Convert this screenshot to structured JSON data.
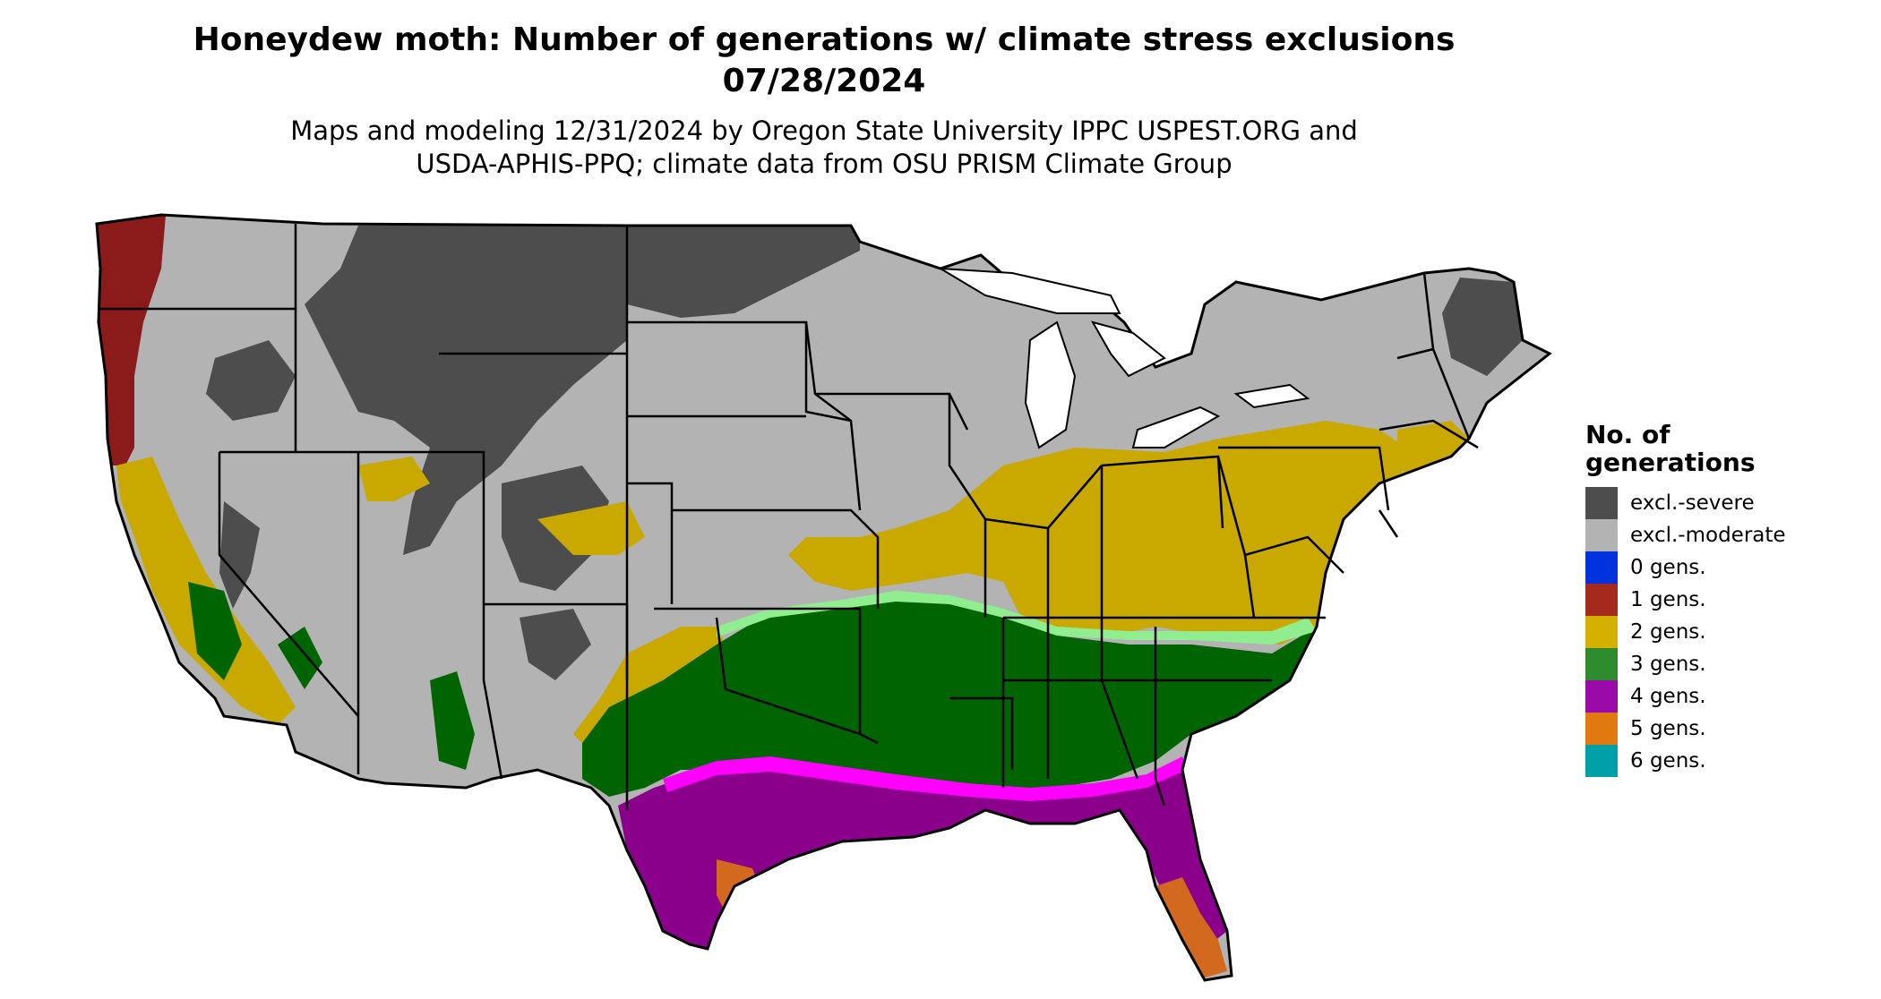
{
  "title": {
    "line1": "Honeydew moth: Number of generations w/ climate stress exclusions",
    "line2": "07/28/2024"
  },
  "subtitle": {
    "line1": "Maps and modeling 12/31/2024 by Oregon State University IPPC USPEST.ORG and",
    "line2": "USDA-APHIS-PPQ; climate data from OSU PRISM Climate Group"
  },
  "legend": {
    "title_line1": "No. of",
    "title_line2": "generations",
    "items": [
      {
        "label": "excl.-severe",
        "color": "#4d4d4d"
      },
      {
        "label": "excl.-moderate",
        "color": "#b3b3b3"
      },
      {
        "label": "0 gens.",
        "color": "#0033dd"
      },
      {
        "label": "1 gens.",
        "color": "#a52a1e"
      },
      {
        "label": "2 gens.",
        "color": "#d4b000"
      },
      {
        "label": "3 gens.",
        "color": "#2e8b2e"
      },
      {
        "label": "4 gens.",
        "color": "#9a0aa8"
      },
      {
        "label": "5 gens.",
        "color": "#e07a10"
      },
      {
        "label": "6 gens.",
        "color": "#00a0a8"
      }
    ]
  },
  "map_colors": {
    "severe": "#4d4d4d",
    "moderate": "#b3b3b3",
    "gen1": "#8b1a1a",
    "gen2": "#c9a800",
    "gen3": "#006400",
    "gen3_light": "#90ee90",
    "gen4": "#8b008b",
    "gen4_bright": "#ff00ff",
    "gen5": "#d2691e",
    "gen6": "#00ced1",
    "border": "#000000"
  }
}
